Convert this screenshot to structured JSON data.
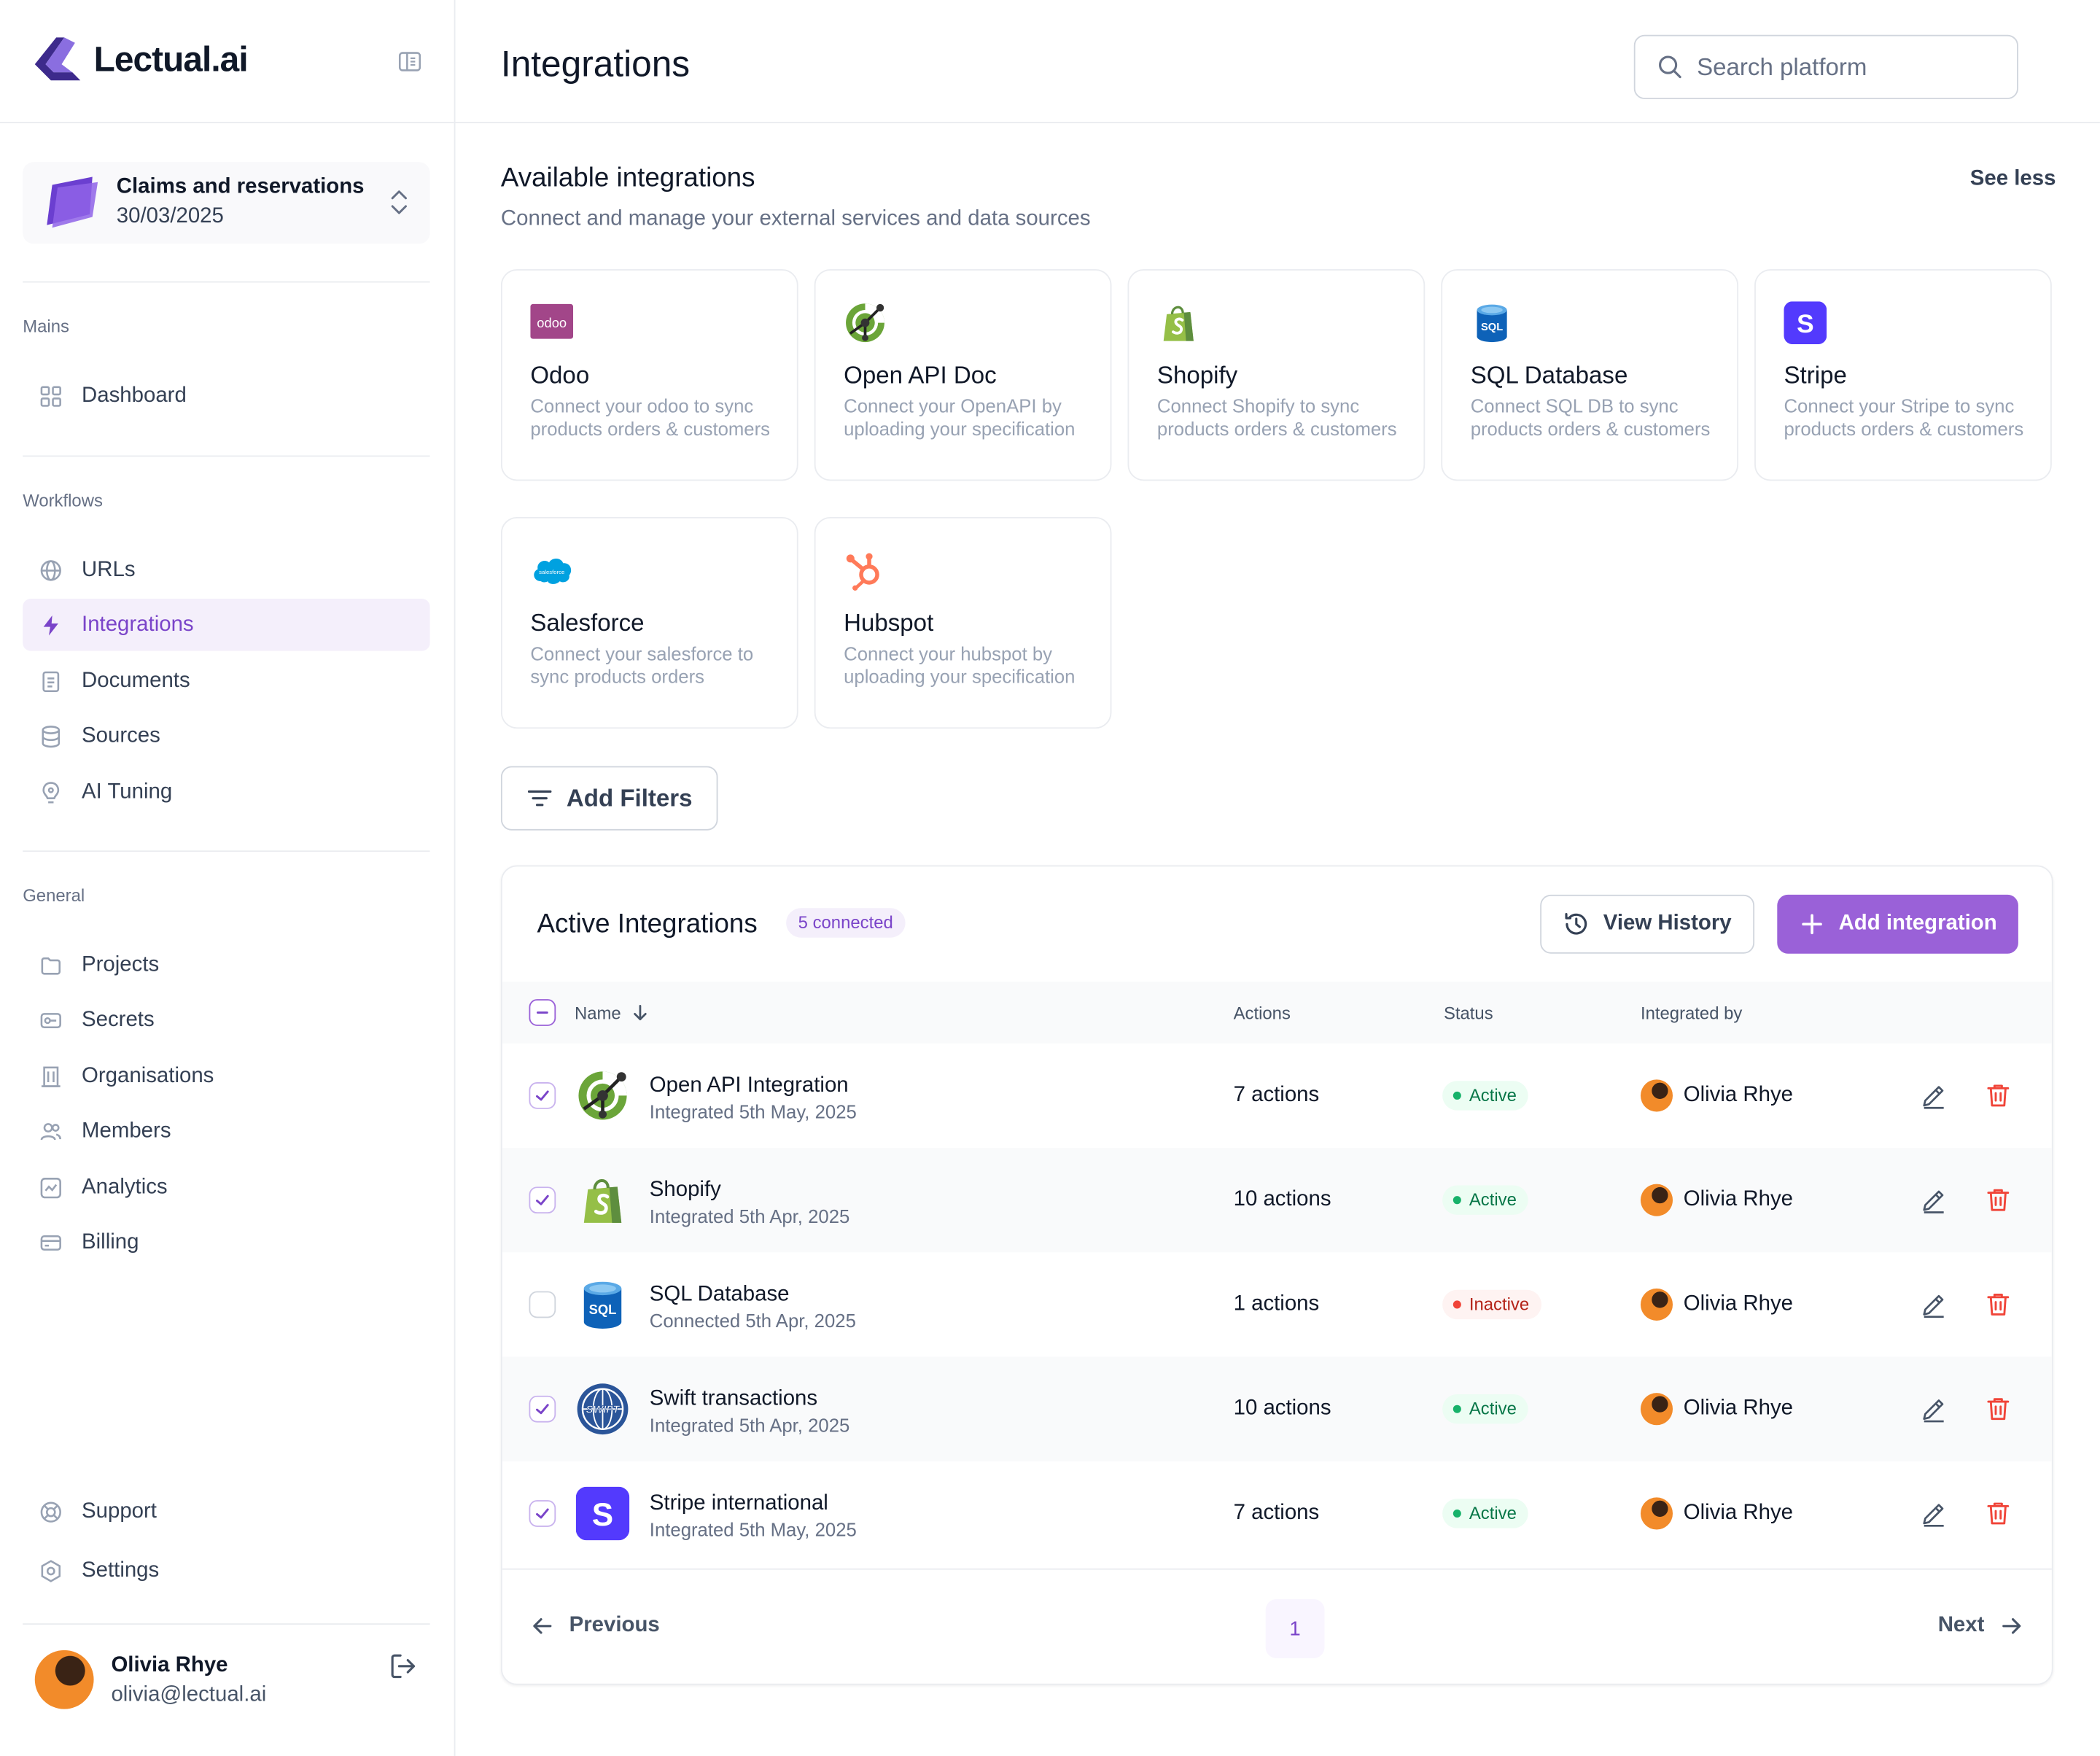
{
  "brand": {
    "name": "Lectual.ai"
  },
  "workspace": {
    "title": "Claims and reservations",
    "date": "30/03/2025"
  },
  "sidebar": {
    "sections": [
      {
        "label": "Mains"
      },
      {
        "label": "Workflows"
      },
      {
        "label": "General"
      }
    ],
    "mains": [
      {
        "label": "Dashboard",
        "icon": "grid-icon"
      }
    ],
    "workflows": [
      {
        "label": "URLs",
        "icon": "globe-icon"
      },
      {
        "label": "Integrations",
        "icon": "bolt-icon",
        "active": true
      },
      {
        "label": "Documents",
        "icon": "document-icon"
      },
      {
        "label": "Sources",
        "icon": "database-icon"
      },
      {
        "label": "AI Tuning",
        "icon": "lightbulb-icon"
      }
    ],
    "general": [
      {
        "label": "Projects",
        "icon": "folder-icon"
      },
      {
        "label": "Secrets",
        "icon": "key-icon"
      },
      {
        "label": "Organisations",
        "icon": "building-icon"
      },
      {
        "label": "Members",
        "icon": "users-icon"
      },
      {
        "label": "Analytics",
        "icon": "chart-icon"
      },
      {
        "label": "Billing",
        "icon": "credit-card-icon"
      }
    ],
    "footer": [
      {
        "label": "Support",
        "icon": "lifebuoy-icon"
      },
      {
        "label": "Settings",
        "icon": "settings-icon"
      }
    ],
    "user": {
      "name": "Olivia Rhye",
      "email": "olivia@lectual.ai"
    }
  },
  "header": {
    "title": "Integrations",
    "search_placeholder": "Search platform"
  },
  "available": {
    "title": "Available integrations",
    "subtitle": "Connect and manage your external services and data sources",
    "toggle": "See less",
    "cards": [
      {
        "name": "Odoo",
        "desc": "Connect your odoo to sync products orders & customers",
        "icon": "odoo-logo"
      },
      {
        "name": "Open API Doc",
        "desc": "Connect your OpenAPI by uploading your specification",
        "icon": "openapi-logo"
      },
      {
        "name": "Shopify",
        "desc": "Connect Shopify to sync products orders & customers",
        "icon": "shopify-logo"
      },
      {
        "name": "SQL Database",
        "desc": "Connect SQL DB to sync products orders & customers",
        "icon": "sql-logo"
      },
      {
        "name": "Stripe",
        "desc": "Connect your Stripe to sync products orders & customers",
        "icon": "stripe-logo"
      },
      {
        "name": "Salesforce",
        "desc": "Connect your salesforce to sync products orders",
        "icon": "salesforce-logo"
      },
      {
        "name": "Hubspot",
        "desc": "Connect your hubspot by uploading your specification",
        "icon": "hubspot-logo"
      }
    ],
    "odoo_logo_text": "odoo",
    "sql_logo_text": "SQL",
    "stripe_logo_text": "S",
    "salesforce_logo_text": "salesforce"
  },
  "filters": {
    "label": "Add Filters"
  },
  "active": {
    "title": "Active Integrations",
    "badge": "5 connected",
    "history_label": "View History",
    "add_label": "Add integration",
    "columns": {
      "name": "Name",
      "actions": "Actions",
      "status": "Status",
      "integrated_by": "Integrated by"
    },
    "rows": [
      {
        "name": "Open API Integration",
        "date": "Integrated 5th May, 2025",
        "actions": "7 actions",
        "status": "Active",
        "user": "Olivia Rhye",
        "checked": true,
        "icon": "openapi-logo"
      },
      {
        "name": "Shopify",
        "date": "Integrated 5th Apr, 2025",
        "actions": "10 actions",
        "status": "Active",
        "user": "Olivia Rhye",
        "checked": true,
        "icon": "shopify-logo"
      },
      {
        "name": "SQL Database",
        "date": "Connected 5th Apr, 2025",
        "actions": "1 actions",
        "status": "Inactive",
        "user": "Olivia Rhye",
        "checked": false,
        "icon": "sql-logo"
      },
      {
        "name": "Swift transactions",
        "date": "Integrated 5th Apr, 2025",
        "actions": "10 actions",
        "status": "Active",
        "user": "Olivia Rhye",
        "checked": true,
        "icon": "swift-logo"
      },
      {
        "name": "Stripe international",
        "date": "Integrated 5th May, 2025",
        "actions": "7 actions",
        "status": "Active",
        "user": "Olivia Rhye",
        "checked": true,
        "icon": "stripe-logo"
      }
    ],
    "swift_logo_text": "SWIFT",
    "pagination": {
      "previous": "Previous",
      "next": "Next",
      "current_page": "1"
    }
  },
  "colors": {
    "accent": "#9a61d8",
    "active_status": "#17b26a",
    "inactive_status": "#f04438",
    "delete": "#f04438"
  }
}
